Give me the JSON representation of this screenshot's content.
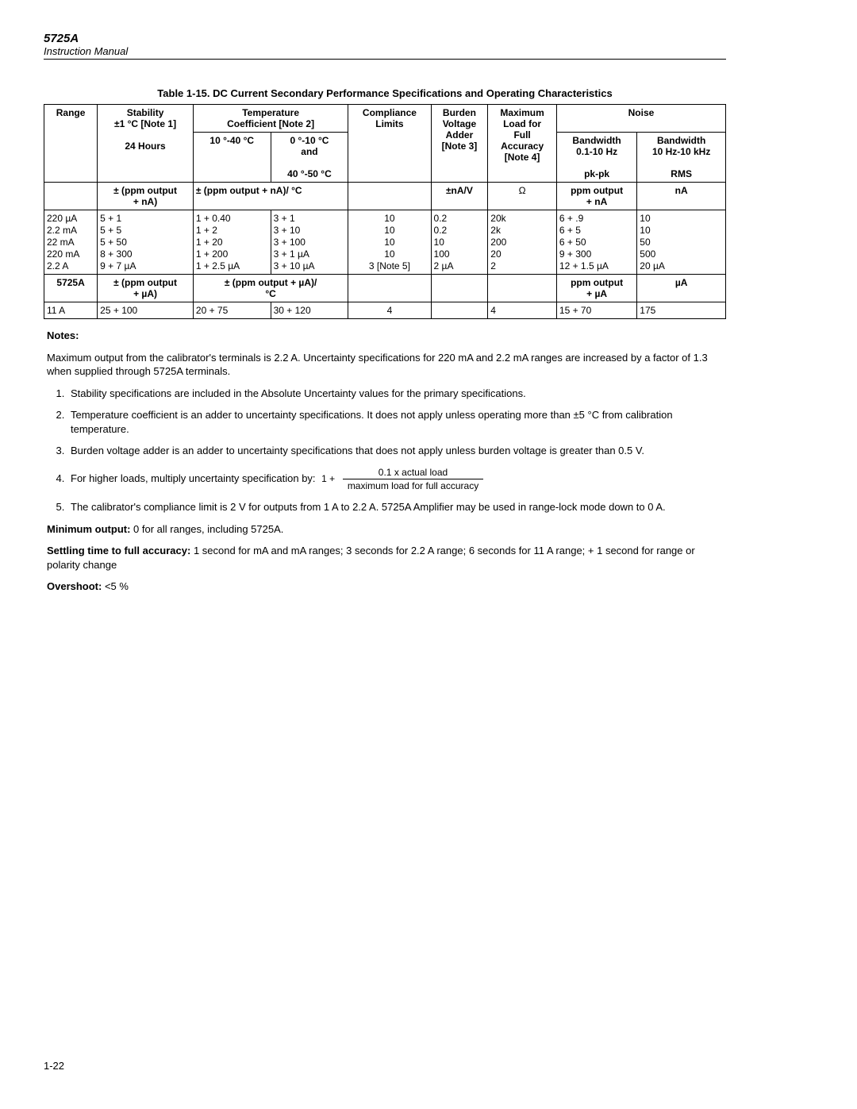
{
  "header": {
    "model": "5725A",
    "sub": "Instruction Manual"
  },
  "table": {
    "title": "Table 1-15. DC Current Secondary Performance Specifications and Operating Characteristics",
    "headers": {
      "range": "Range",
      "stability": "Stability\n±1 °C [Note 1]",
      "stability_sub": "24 Hours",
      "tempcoef": "Temperature\nCoefficient [Note 2]",
      "tc_a": "10 °-40 °C",
      "tc_b": "0 °-10 °C\nand",
      "tc_b2": "40 °-50 °C",
      "compliance": "Compliance\nLimits",
      "burden": "Burden\nVoltage\nAdder\n[Note 3]",
      "maxload": "Maximum\nLoad for\nFull\nAccuracy",
      "maxload_sub": "[Note 4]",
      "noise": "Noise",
      "bw1": "Bandwidth\n0.1-10 Hz",
      "bw1_sub": "pk-pk",
      "bw2": "Bandwidth\n10 Hz-10 kHz",
      "bw2_sub": "RMS"
    },
    "unit_row1": {
      "stability": "± (ppm output\n+ nA)",
      "tc": "± (ppm output + nA)/ °C",
      "burden": "±nA/V",
      "maxload": "Ω",
      "bw1": "ppm output\n+ nA",
      "bw2": "nA"
    },
    "ranges": [
      "220 µA",
      "2.2 mA",
      "22 mA",
      "220 mA",
      "2.2 A"
    ],
    "stability": [
      "5 + 1",
      "5 + 5",
      "5 + 50",
      "8 + 300",
      "9 + 7 µA"
    ],
    "tc_a": [
      "1 + 0.40",
      "1 + 2",
      "1 + 20",
      "1 + 200",
      "1 + 2.5 µA"
    ],
    "tc_b": [
      "3 + 1",
      "3 + 10",
      "3 + 100",
      "3 + 1 µA",
      "3 + 10 µA"
    ],
    "compliance": [
      "10",
      "10",
      "10",
      "10",
      "3 [Note 5]"
    ],
    "burden": [
      "0.2",
      "0.2",
      "10",
      "100",
      "2 µA"
    ],
    "maxload": [
      "20k",
      "2k",
      "200",
      "20",
      "2"
    ],
    "bw1": [
      "6 + .9",
      "6 + 5",
      "6 + 50",
      "9 + 300",
      "12 + 1.5 µA"
    ],
    "bw2": [
      "10",
      "10",
      "50",
      "500",
      "20 µA"
    ],
    "row_5725A": {
      "label": "5725A",
      "stability": "± (ppm output\n+ µA)",
      "tc": "± (ppm output + µA)/\n°C",
      "bw1": "ppm output\n+ µA",
      "bw2": "µA"
    },
    "row_11A": {
      "range": "11 A",
      "stability": "25 + 100",
      "tc_a": "20 + 75",
      "tc_b": "30 + 120",
      "compliance": "4",
      "maxload": "4",
      "bw1": "15 + 70",
      "bw2": "175"
    }
  },
  "notes": {
    "title": "Notes:",
    "intro": "Maximum output from the calibrator's terminals is 2.2 A. Uncertainty specifications for 220 mA and 2.2 mA ranges are increased by a factor of 1.3 when supplied through 5725A terminals.",
    "items": [
      "Stability specifications are included in the Absolute Uncertainty values for the primary specifications.",
      "Temperature coefficient is an adder to uncertainty specifications. It does not apply unless operating more than ±5 °C from calibration temperature.",
      "Burden voltage adder is an adder to uncertainty specifications that does not apply unless burden voltage is greater than 0.5 V.",
      "For higher loads, multiply uncertainty specification by:",
      "The calibrator's compliance limit is 2 V for outputs from 1 A to 2.2 A. 5725A Amplifier may be used in range-lock mode down to 0 A."
    ],
    "frac_num": "0.1 x actual load",
    "frac_den": "maximum load for full accuracy",
    "min_out_label": "Minimum output:",
    "min_out": " 0 for all ranges, including 5725A.",
    "settle_label": "Settling time to full accuracy:",
    "settle": " 1 second for mA and mA ranges; 3 seconds for 2.2 A range; 6 seconds for 11 A range; + 1 second for range or polarity change",
    "overshoot_label": "Overshoot:",
    "overshoot": " <5 %"
  },
  "pagenum": "1-22"
}
